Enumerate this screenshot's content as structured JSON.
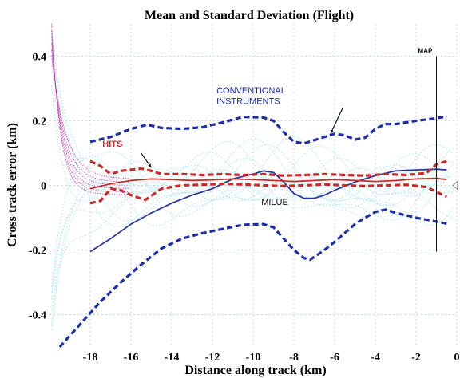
{
  "chart_data": {
    "type": "line",
    "title": "Mean and Standard Deviation (Flight)",
    "xlabel": "Distance along track (km)",
    "ylabel": "Cross track error (km)",
    "xlim": [
      -20,
      0
    ],
    "ylim": [
      -0.5,
      0.5
    ],
    "x_ticks": [
      -18,
      -16,
      -14,
      -12,
      -10,
      -8,
      -6,
      -4,
      -2,
      0
    ],
    "y_ticks": [
      -0.4,
      -0.2,
      0,
      0.2,
      0.4
    ],
    "x_tick_labels": [
      "-18",
      "-16",
      "-14",
      "-12",
      "-10",
      "-8",
      "-6",
      "-4",
      "-2",
      "0"
    ],
    "y_tick_labels": [
      "-0.4",
      "-0.2",
      "0",
      "0.2",
      "0.4"
    ],
    "grid": true,
    "series": [
      {
        "name": "CONVENTIONAL INSTRUMENTS",
        "color": "#1c2fa8",
        "style": "dashed",
        "points": [
          [
            -18,
            0.135
          ],
          [
            -17,
            0.15
          ],
          [
            -16,
            0.175
          ],
          [
            -15.2,
            0.188
          ],
          [
            -14.5,
            0.178
          ],
          [
            -13.5,
            0.175
          ],
          [
            -12.5,
            0.18
          ],
          [
            -11.5,
            0.195
          ],
          [
            -10.5,
            0.212
          ],
          [
            -9.5,
            0.21
          ],
          [
            -9,
            0.2
          ],
          [
            -8.5,
            0.165
          ],
          [
            -8,
            0.135
          ],
          [
            -7.5,
            0.13
          ],
          [
            -7,
            0.14
          ],
          [
            -6,
            0.16
          ],
          [
            -5.5,
            0.155
          ],
          [
            -5,
            0.142
          ],
          [
            -4.5,
            0.148
          ],
          [
            -4,
            0.175
          ],
          [
            -3.5,
            0.19
          ],
          [
            -3,
            0.19
          ],
          [
            -2,
            0.2
          ],
          [
            -1,
            0.208
          ],
          [
            -0.5,
            0.214
          ]
        ]
      },
      {
        "name": "CONVENTIONAL INSTRUMENTS",
        "color": "#1c2fa8",
        "style": "dashed",
        "points": [
          [
            -19.5,
            -0.5
          ],
          [
            -18.5,
            -0.43
          ],
          [
            -17.5,
            -0.36
          ],
          [
            -16.5,
            -0.3
          ],
          [
            -15.5,
            -0.245
          ],
          [
            -14.5,
            -0.195
          ],
          [
            -13.5,
            -0.165
          ],
          [
            -12.5,
            -0.148
          ],
          [
            -11.5,
            -0.135
          ],
          [
            -10.5,
            -0.122
          ],
          [
            -9.5,
            -0.12
          ],
          [
            -9,
            -0.13
          ],
          [
            -8.5,
            -0.165
          ],
          [
            -8,
            -0.2
          ],
          [
            -7.5,
            -0.225
          ],
          [
            -7.2,
            -0.23
          ],
          [
            -6.5,
            -0.2
          ],
          [
            -6,
            -0.175
          ],
          [
            -5,
            -0.12
          ],
          [
            -4.5,
            -0.1
          ],
          [
            -4,
            -0.082
          ],
          [
            -3.5,
            -0.075
          ],
          [
            -3,
            -0.085
          ],
          [
            -2,
            -0.1
          ],
          [
            -1,
            -0.112
          ],
          [
            -0.5,
            -0.118
          ]
        ]
      },
      {
        "name": "MILUE",
        "color": "#2a37a0",
        "style": "solid",
        "points": [
          [
            -18,
            -0.205
          ],
          [
            -17,
            -0.165
          ],
          [
            -16,
            -0.12
          ],
          [
            -15,
            -0.085
          ],
          [
            -14,
            -0.055
          ],
          [
            -13,
            -0.03
          ],
          [
            -12,
            -0.01
          ],
          [
            -11,
            0.02
          ],
          [
            -10,
            0.035
          ],
          [
            -9.5,
            0.045
          ],
          [
            -9,
            0.04
          ],
          [
            -8.5,
            0.01
          ],
          [
            -8,
            -0.025
          ],
          [
            -7.5,
            -0.04
          ],
          [
            -7,
            -0.04
          ],
          [
            -6.5,
            -0.03
          ],
          [
            -6,
            -0.015
          ],
          [
            -5,
            0.01
          ],
          [
            -4,
            0.03
          ],
          [
            -3,
            0.045
          ],
          [
            -2,
            0.048
          ],
          [
            -1,
            0.05
          ],
          [
            -0.5,
            0.048
          ]
        ]
      },
      {
        "name": "HITS",
        "color": "#cc2a2a",
        "style": "solid",
        "points": [
          [
            -18,
            -0.01
          ],
          [
            -17,
            0.005
          ],
          [
            -16,
            0.015
          ],
          [
            -15,
            0.02
          ],
          [
            -14,
            0.018
          ],
          [
            -13,
            0.015
          ],
          [
            -12,
            0.017
          ],
          [
            -11,
            0.02
          ],
          [
            -10,
            0.018
          ],
          [
            -9,
            0.015
          ],
          [
            -8,
            0.012
          ],
          [
            -7,
            0.015
          ],
          [
            -6,
            0.018
          ],
          [
            -5,
            0.015
          ],
          [
            -4,
            0.012
          ],
          [
            -3,
            0.015
          ],
          [
            -2,
            0.02
          ],
          [
            -1,
            0.022
          ],
          [
            -0.5,
            0.018
          ]
        ]
      },
      {
        "name": "HITS",
        "color": "#cc2a2a",
        "style": "dashed",
        "points": [
          [
            -18,
            0.075
          ],
          [
            -17.5,
            0.06
          ],
          [
            -17,
            0.035
          ],
          [
            -16.5,
            0.045
          ],
          [
            -15.5,
            0.052
          ],
          [
            -15,
            0.045
          ],
          [
            -14.5,
            0.035
          ],
          [
            -13.5,
            0.035
          ],
          [
            -12.5,
            0.032
          ],
          [
            -11.5,
            0.035
          ],
          [
            -10.5,
            0.032
          ],
          [
            -9.5,
            0.035
          ],
          [
            -8.5,
            0.03
          ],
          [
            -7.5,
            0.032
          ],
          [
            -6.5,
            0.035
          ],
          [
            -5.5,
            0.032
          ],
          [
            -4.5,
            0.03
          ],
          [
            -3.5,
            0.035
          ],
          [
            -2.5,
            0.032
          ],
          [
            -1.5,
            0.038
          ],
          [
            -1,
            0.065
          ],
          [
            -0.5,
            0.075
          ]
        ]
      },
      {
        "name": "HITS",
        "color": "#cc2a2a",
        "style": "dashed",
        "points": [
          [
            -18,
            -0.055
          ],
          [
            -17.5,
            -0.048
          ],
          [
            -17,
            -0.01
          ],
          [
            -16.5,
            -0.015
          ],
          [
            -16,
            -0.03
          ],
          [
            -15.3,
            -0.045
          ],
          [
            -14.5,
            -0.01
          ],
          [
            -13.5,
            0.0
          ],
          [
            -12.5,
            0.002
          ],
          [
            -11.5,
            0.005
          ],
          [
            -10.5,
            0.003
          ],
          [
            -9.5,
            0.0
          ],
          [
            -8.5,
            -0.002
          ],
          [
            -7.5,
            0.0
          ],
          [
            -6.5,
            0.003
          ],
          [
            -5.5,
            0.0
          ],
          [
            -4.5,
            -0.002
          ],
          [
            -3.5,
            0.0
          ],
          [
            -2.5,
            0.002
          ],
          [
            -1.5,
            -0.005
          ],
          [
            -1,
            -0.02
          ],
          [
            -0.5,
            -0.035
          ]
        ]
      }
    ],
    "background_traces_color": "#aee8ee",
    "background_spike_color": "#cc33aa",
    "annotations": [
      {
        "text": "CONVENTIONAL",
        "color": "#1c2fa8"
      },
      {
        "text": "INSTRUMENTS",
        "color": "#1c2fa8"
      },
      {
        "text": "HITS",
        "color": "#cc2a2a"
      },
      {
        "text": "MILUE",
        "color": "#111111"
      },
      {
        "text": "MAP",
        "color": "#111111"
      }
    ],
    "map_marker_x": -1.0
  }
}
